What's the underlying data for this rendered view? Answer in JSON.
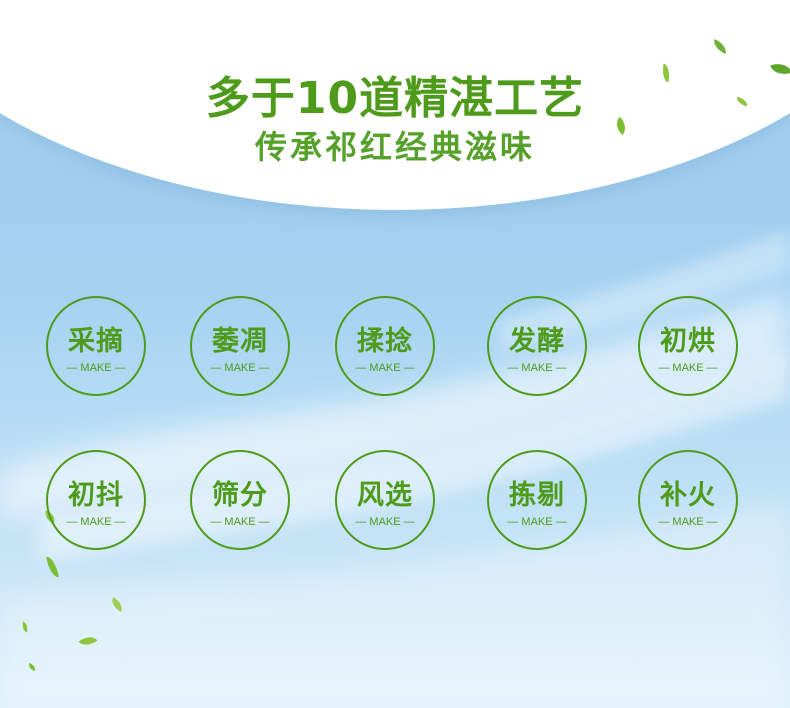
{
  "header": {
    "title": "多于10道精湛工艺",
    "subtitle": "传承祁红经典滋味"
  },
  "steps": [
    {
      "name": "采摘",
      "tag": "— MAKE —"
    },
    {
      "name": "萎凋",
      "tag": "— MAKE —"
    },
    {
      "name": "揉捻",
      "tag": "— MAKE —"
    },
    {
      "name": "发酵",
      "tag": "— MAKE —"
    },
    {
      "name": "初烘",
      "tag": "— MAKE —"
    },
    {
      "name": "初抖",
      "tag": "— MAKE —"
    },
    {
      "name": "筛分",
      "tag": "— MAKE —"
    },
    {
      "name": "风选",
      "tag": "— MAKE —"
    },
    {
      "name": "拣剔",
      "tag": "— MAKE —"
    },
    {
      "name": "补火",
      "tag": "— MAKE —"
    }
  ],
  "colors": {
    "accent_green": "#4e9b1b",
    "sky_blue": "#a9d3f0",
    "leaf_green": "#8cc63f"
  },
  "decorations": {
    "leaf_icon": "tea-leaf-icon"
  }
}
